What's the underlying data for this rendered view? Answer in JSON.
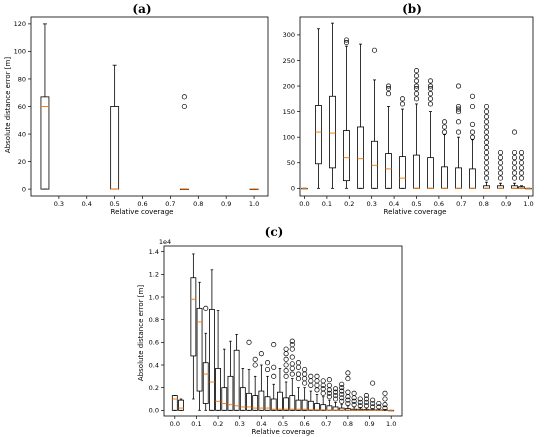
{
  "chart_data": [
    {
      "type": "box",
      "panel_label": "(a)",
      "xlabel": "Relative coverage",
      "ylabel": "Absolute distance error [m]",
      "xlim": [
        0.2,
        1.05
      ],
      "ylim": [
        -5,
        125
      ],
      "xticks": [
        "0.3",
        "0.4",
        "0.5",
        "0.6",
        "0.7",
        "0.8",
        "0.9",
        "1.0"
      ],
      "xtick_values": [
        0.3,
        0.4,
        0.5,
        0.6,
        0.7,
        0.8,
        0.9,
        1.0
      ],
      "yticks": [
        "0",
        "20",
        "40",
        "60",
        "80",
        "100",
        "120"
      ],
      "ytick_values": [
        0,
        20,
        40,
        60,
        80,
        100,
        120
      ],
      "boxes": [
        {
          "x": 0.25,
          "min": 0,
          "q1": 0,
          "median": 60,
          "q3": 67,
          "max": 120,
          "fliers": []
        },
        {
          "x": 0.5,
          "min": 0,
          "q1": 0,
          "median": 0,
          "q3": 60,
          "max": 90,
          "fliers": []
        },
        {
          "x": 0.75,
          "min": 0,
          "q1": 0,
          "median": 0,
          "q3": 0,
          "max": 0,
          "fliers": [
            60,
            67
          ]
        },
        {
          "x": 1.0,
          "min": 0,
          "q1": 0,
          "median": 0,
          "q3": 0,
          "max": 0,
          "fliers": []
        }
      ]
    },
    {
      "type": "box",
      "panel_label": "(b)",
      "xlabel": "Relative coverage",
      "ylabel": "",
      "xlim": [
        -0.02,
        1.02
      ],
      "ylim": [
        -15,
        335
      ],
      "xticks": [
        "0.0",
        "0.1",
        "0.2",
        "0.3",
        "0.4",
        "0.5",
        "0.6",
        "0.7",
        "0.8",
        "0.9",
        "1.0"
      ],
      "xtick_values": [
        0,
        0.1,
        0.2,
        0.3,
        0.4,
        0.5,
        0.6,
        0.7,
        0.8,
        0.9,
        1.0
      ],
      "yticks": [
        "0",
        "50",
        "100",
        "150",
        "200",
        "250",
        "300"
      ],
      "ytick_values": [
        0,
        50,
        100,
        150,
        200,
        250,
        300
      ],
      "boxes": [
        {
          "x": 0.0,
          "min": 0,
          "q1": 0,
          "median": 0,
          "q3": 0,
          "max": 0,
          "fliers": []
        },
        {
          "x": 0.0625,
          "min": 0,
          "q1": 48,
          "median": 110,
          "q3": 162,
          "max": 312,
          "fliers": []
        },
        {
          "x": 0.125,
          "min": 0,
          "q1": 40,
          "median": 108,
          "q3": 180,
          "max": 323,
          "fliers": []
        },
        {
          "x": 0.1875,
          "min": 0,
          "q1": 15,
          "median": 60,
          "q3": 113,
          "max": 278,
          "fliers": [
            285,
            290
          ]
        },
        {
          "x": 0.25,
          "min": 0,
          "q1": 0,
          "median": 58,
          "q3": 120,
          "max": 282,
          "fliers": []
        },
        {
          "x": 0.3125,
          "min": 0,
          "q1": 0,
          "median": 45,
          "q3": 92,
          "max": 212,
          "fliers": [
            270
          ]
        },
        {
          "x": 0.375,
          "min": 0,
          "q1": 0,
          "median": 38,
          "q3": 68,
          "max": 160,
          "fliers": [
            185,
            195,
            200
          ]
        },
        {
          "x": 0.4375,
          "min": 0,
          "q1": 0,
          "median": 20,
          "q3": 62,
          "max": 155,
          "fliers": [
            165,
            175
          ]
        },
        {
          "x": 0.5,
          "min": 0,
          "q1": 0,
          "median": 0,
          "q3": 65,
          "max": 165,
          "fliers": [
            175,
            185,
            195,
            200,
            210,
            220,
            230
          ]
        },
        {
          "x": 0.5625,
          "min": 0,
          "q1": 0,
          "median": 0,
          "q3": 60,
          "max": 150,
          "fliers": [
            165,
            175,
            185,
            195,
            200,
            210
          ]
        },
        {
          "x": 0.625,
          "min": 0,
          "q1": 0,
          "median": 0,
          "q3": 42,
          "max": 105,
          "fliers": [
            110,
            120,
            130
          ]
        },
        {
          "x": 0.6875,
          "min": 0,
          "q1": 0,
          "median": 0,
          "q3": 40,
          "max": 100,
          "fliers": [
            110,
            130,
            150,
            155,
            160,
            200
          ]
        },
        {
          "x": 0.75,
          "min": 0,
          "q1": 0,
          "median": 0,
          "q3": 38,
          "max": 95,
          "fliers": [
            100,
            110,
            125,
            160,
            180
          ]
        },
        {
          "x": 0.8125,
          "min": 0,
          "q1": 0,
          "median": 0,
          "q3": 5,
          "max": 12,
          "fliers": [
            20,
            30,
            40,
            50,
            60,
            70,
            80,
            90,
            100,
            110,
            120,
            130,
            140,
            150,
            160
          ]
        },
        {
          "x": 0.875,
          "min": 0,
          "q1": 0,
          "median": 0,
          "q3": 5,
          "max": 10,
          "fliers": [
            20,
            30,
            40,
            50,
            60,
            70
          ]
        },
        {
          "x": 0.9375,
          "min": 0,
          "q1": 0,
          "median": 0,
          "q3": 5,
          "max": 10,
          "fliers": [
            20,
            30,
            40,
            50,
            60,
            70,
            110
          ]
        },
        {
          "x": 0.96875,
          "min": 0,
          "q1": 0,
          "median": 0,
          "q3": 3,
          "max": 5,
          "fliers": [
            20,
            30,
            40,
            50,
            60,
            70
          ]
        },
        {
          "x": 1.0,
          "min": 0,
          "q1": 0,
          "median": 0,
          "q3": 0,
          "max": 0,
          "fliers": []
        }
      ]
    },
    {
      "type": "box",
      "panel_label": "(c)",
      "xlabel": "Relative coverage",
      "ylabel": "Absolute distance error [m]",
      "scale_label": "1e4",
      "xlim": [
        -0.05,
        1.05
      ],
      "ylim": [
        -500,
        14500
      ],
      "xticks": [
        "0.0",
        "0.1",
        "0.2",
        "0.3",
        "0.4",
        "0.5",
        "0.6",
        "0.7",
        "0.8",
        "0.9",
        "1.0"
      ],
      "xtick_values": [
        0,
        0.1,
        0.2,
        0.3,
        0.4,
        0.5,
        0.6,
        0.7,
        0.8,
        0.9,
        1.0
      ],
      "yticks": [
        "0.0",
        "0.2",
        "0.4",
        "0.6",
        "0.8",
        "1.0",
        "1.2",
        "1.4"
      ],
      "ytick_values": [
        0,
        2000,
        4000,
        6000,
        8000,
        10000,
        12000,
        14000
      ],
      "boxes": [
        {
          "x": 0.0,
          "min": 0,
          "q1": 0,
          "median": 1000,
          "q3": 1300,
          "max": 1300,
          "fliers": []
        },
        {
          "x": 0.0286,
          "min": 0,
          "q1": 0,
          "median": 200,
          "q3": 900,
          "max": 1000,
          "fliers": []
        },
        {
          "x": 0.0857,
          "min": 1000,
          "q1": 4800,
          "median": 9800,
          "q3": 11700,
          "max": 13800,
          "fliers": []
        },
        {
          "x": 0.1143,
          "min": 0,
          "q1": 1700,
          "median": 7800,
          "q3": 9000,
          "max": 11300,
          "fliers": []
        },
        {
          "x": 0.1429,
          "min": 0,
          "q1": 600,
          "median": 3200,
          "q3": 4200,
          "max": 6800,
          "fliers": [
            9000
          ]
        },
        {
          "x": 0.1714,
          "min": 0,
          "q1": 0,
          "median": 2500,
          "q3": 8900,
          "max": 12400,
          "fliers": []
        },
        {
          "x": 0.2,
          "min": 0,
          "q1": 0,
          "median": 800,
          "q3": 3700,
          "max": 8800,
          "fliers": []
        },
        {
          "x": 0.2286,
          "min": 0,
          "q1": 0,
          "median": 600,
          "q3": 2000,
          "max": 5400,
          "fliers": []
        },
        {
          "x": 0.2571,
          "min": 0,
          "q1": 0,
          "median": 500,
          "q3": 3000,
          "max": 6100,
          "fliers": []
        },
        {
          "x": 0.2857,
          "min": 0,
          "q1": 0,
          "median": 400,
          "q3": 5300,
          "max": 6700,
          "fliers": []
        },
        {
          "x": 0.3143,
          "min": 0,
          "q1": 0,
          "median": 300,
          "q3": 2000,
          "max": 3700,
          "fliers": []
        },
        {
          "x": 0.3429,
          "min": 0,
          "q1": 0,
          "median": 300,
          "q3": 1500,
          "max": 3600,
          "fliers": [
            6000
          ]
        },
        {
          "x": 0.3714,
          "min": 0,
          "q1": 0,
          "median": 200,
          "q3": 1300,
          "max": 3000,
          "fliers": [
            4000,
            4500
          ]
        },
        {
          "x": 0.4,
          "min": 0,
          "q1": 0,
          "median": 200,
          "q3": 1700,
          "max": 4000,
          "fliers": [
            5000
          ]
        },
        {
          "x": 0.4286,
          "min": 0,
          "q1": 0,
          "median": 200,
          "q3": 1200,
          "max": 3000,
          "fliers": [
            3600,
            4200
          ]
        },
        {
          "x": 0.4571,
          "min": 0,
          "q1": 0,
          "median": 100,
          "q3": 1000,
          "max": 2300,
          "fliers": [
            3000,
            3800,
            5800
          ]
        },
        {
          "x": 0.4857,
          "min": 0,
          "q1": 0,
          "median": 100,
          "q3": 1600,
          "max": 3700,
          "fliers": []
        },
        {
          "x": 0.5143,
          "min": 0,
          "q1": 0,
          "median": 100,
          "q3": 1100,
          "max": 2500,
          "fliers": [
            3000,
            3500,
            4000,
            4500,
            5000,
            5400
          ]
        },
        {
          "x": 0.5429,
          "min": 0,
          "q1": 0,
          "median": 100,
          "q3": 1300,
          "max": 2800,
          "fliers": [
            3200,
            3700,
            4100,
            4700,
            5400,
            5800,
            6100
          ]
        },
        {
          "x": 0.5714,
          "min": 0,
          "q1": 0,
          "median": 100,
          "q3": 900,
          "max": 2000,
          "fliers": [
            2800,
            3200,
            3800,
            4200
          ]
        },
        {
          "x": 0.6,
          "min": 0,
          "q1": 0,
          "median": 100,
          "q3": 900,
          "max": 2000,
          "fliers": [
            2400,
            2800,
            3200,
            3600
          ]
        },
        {
          "x": 0.6286,
          "min": 0,
          "q1": 0,
          "median": 50,
          "q3": 800,
          "max": 1700,
          "fliers": [
            2200,
            2600,
            3000
          ]
        },
        {
          "x": 0.6571,
          "min": 0,
          "q1": 0,
          "median": 50,
          "q3": 600,
          "max": 1400,
          "fliers": [
            1800,
            2200,
            2600,
            3000
          ]
        },
        {
          "x": 0.6857,
          "min": 0,
          "q1": 0,
          "median": 50,
          "q3": 500,
          "max": 1200,
          "fliers": [
            1500,
            1900,
            2200,
            2600
          ]
        },
        {
          "x": 0.7143,
          "min": 0,
          "q1": 0,
          "median": 30,
          "q3": 400,
          "max": 900,
          "fliers": [
            1200,
            1500,
            1800,
            2200,
            2700
          ]
        },
        {
          "x": 0.7429,
          "min": 0,
          "q1": 0,
          "median": 30,
          "q3": 300,
          "max": 700,
          "fliers": [
            1000,
            1300,
            1600,
            1900
          ]
        },
        {
          "x": 0.7714,
          "min": 0,
          "q1": 0,
          "median": 20,
          "q3": 200,
          "max": 500,
          "fliers": [
            800,
            1100,
            1400,
            1700,
            2000,
            2300
          ]
        },
        {
          "x": 0.8,
          "min": 0,
          "q1": 0,
          "median": 20,
          "q3": 150,
          "max": 400,
          "fliers": [
            600,
            900,
            1200,
            1600,
            2800,
            3300
          ]
        },
        {
          "x": 0.8286,
          "min": 0,
          "q1": 0,
          "median": 10,
          "q3": 100,
          "max": 300,
          "fliers": [
            500,
            800,
            1100,
            1500
          ]
        },
        {
          "x": 0.8571,
          "min": 0,
          "q1": 0,
          "median": 10,
          "q3": 100,
          "max": 250,
          "fliers": [
            400,
            700,
            1000
          ]
        },
        {
          "x": 0.8857,
          "min": 0,
          "q1": 0,
          "median": 10,
          "q3": 80,
          "max": 200,
          "fliers": [
            400,
            700,
            1000,
            1300
          ]
        },
        {
          "x": 0.9143,
          "min": 0,
          "q1": 0,
          "median": 5,
          "q3": 60,
          "max": 150,
          "fliers": [
            300,
            600,
            900,
            2400
          ]
        },
        {
          "x": 0.9429,
          "min": 0,
          "q1": 0,
          "median": 5,
          "q3": 50,
          "max": 120,
          "fliers": [
            300,
            600
          ]
        },
        {
          "x": 0.9714,
          "min": 0,
          "q1": 0,
          "median": 5,
          "q3": 30,
          "max": 80,
          "fliers": [
            200,
            500,
            1000,
            1500
          ]
        },
        {
          "x": 1.0,
          "min": 0,
          "q1": 0,
          "median": 0,
          "q3": 0,
          "max": 0,
          "fliers": []
        }
      ]
    }
  ]
}
